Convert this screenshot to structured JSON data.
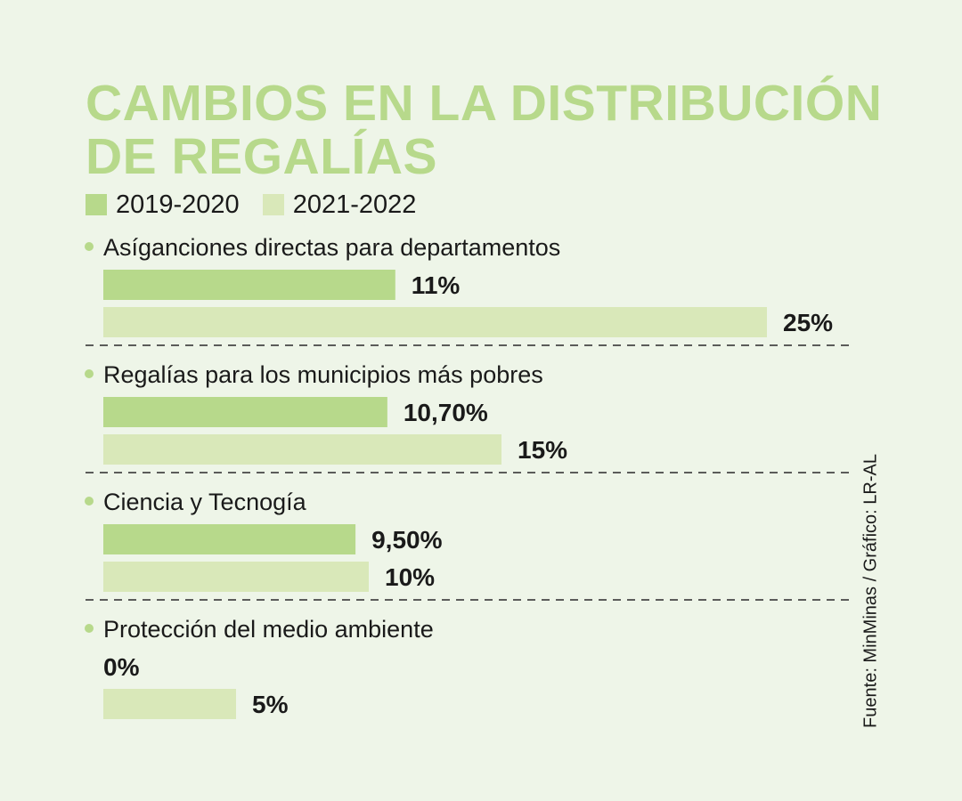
{
  "source": "Fuente: MinMinas / Gráfico: LR-AL",
  "colors": {
    "background": "#eef5e8",
    "title": "#b7d98b",
    "series_2019_2020": "#b7d98b",
    "series_2021_2022": "#d9e8b9",
    "divider": "#2a2a2a"
  },
  "chart_data": {
    "type": "bar",
    "orientation": "horizontal",
    "title": "CAMBIOS EN LA DISTRIBUCIÓN DE REGALÍAS",
    "categories": [
      "Asíganciones directas para departamentos",
      "Regalías para los municipios más pobres",
      "Ciencia y Tecnogía",
      "Protección del medio ambiente"
    ],
    "series": [
      {
        "name": "2019-2020",
        "values": [
          11,
          10.7,
          9.5,
          0
        ],
        "labels": [
          "11%",
          "10,70%",
          "9,50%",
          "0%"
        ]
      },
      {
        "name": "2021-2022",
        "values": [
          25,
          15,
          10,
          5
        ],
        "labels": [
          "25%",
          "15%",
          "10%",
          "5%"
        ]
      }
    ],
    "legend_position": "top-left",
    "grid": false
  }
}
